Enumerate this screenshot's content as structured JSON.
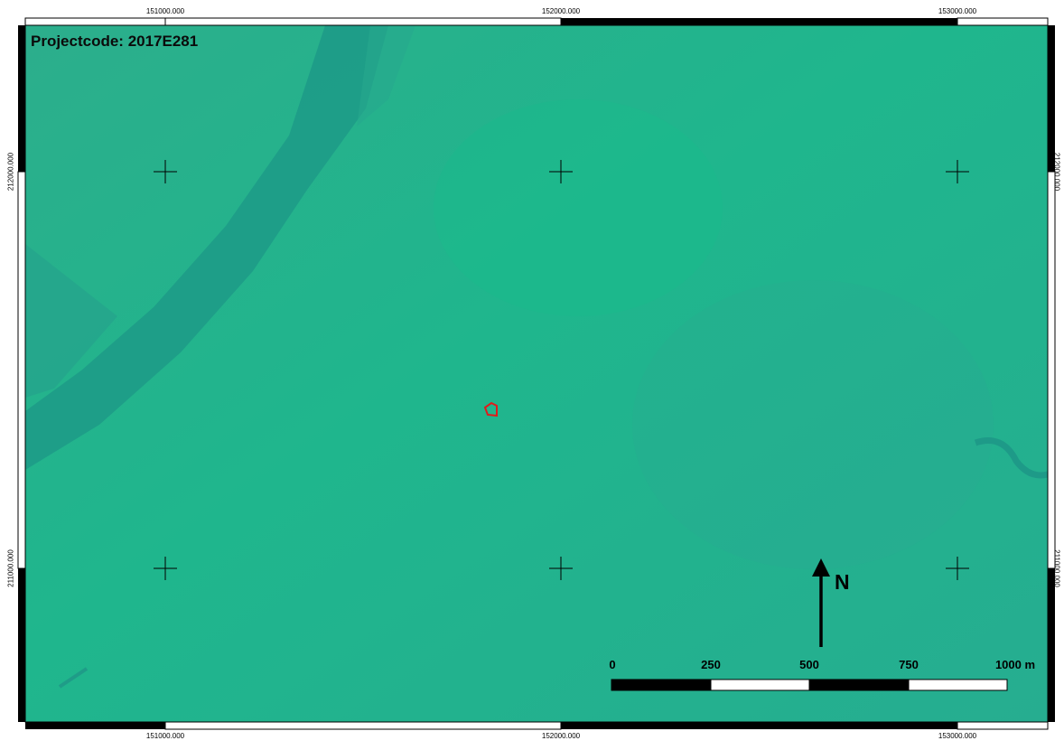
{
  "project": {
    "label": "Projectcode: 2017E281"
  },
  "grid": {
    "x_labels": [
      "151000.000",
      "152000.000",
      "153000.000"
    ],
    "y_labels": [
      "212000.000",
      "211000.000"
    ]
  },
  "north_arrow": {
    "label": "N"
  },
  "scale_bar": {
    "labels": [
      "0",
      "250",
      "500",
      "750",
      "1000 m"
    ]
  },
  "colors": {
    "map_base": "#21b48c",
    "river": "#1e9c86",
    "site_outline": "#e01b1b",
    "frame": "#000000"
  }
}
